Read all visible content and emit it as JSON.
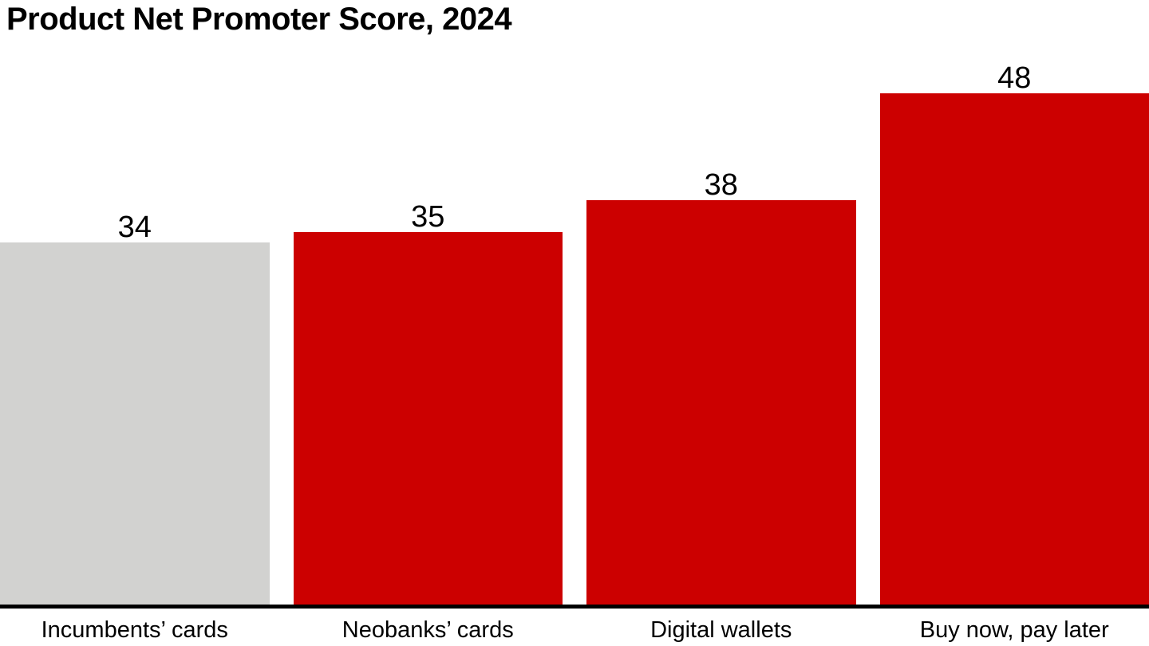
{
  "title": "Product Net Promoter Score, 2024",
  "chart_data": {
    "type": "bar",
    "title": "Product Net Promoter Score, 2024",
    "categories": [
      "Incumbents’ cards",
      "Neobanks’ cards",
      "Digital wallets",
      "Buy now, pay later"
    ],
    "values": [
      34,
      35,
      38,
      48
    ],
    "value_labels": [
      "34",
      "35",
      "38",
      "48"
    ],
    "bar_colors": [
      "#D2D2D0",
      "#CC0000",
      "#CC0000",
      "#CC0000"
    ],
    "xlabel": "",
    "ylabel": "",
    "ylim": [
      0,
      48
    ],
    "grid": false,
    "legend": "none",
    "axis_line_color": "#000000"
  },
  "colors": {
    "accent_red": "#CC0000",
    "neutral_gray": "#D2D2D0",
    "axis_black": "#000000",
    "background": "#FFFFFF"
  }
}
